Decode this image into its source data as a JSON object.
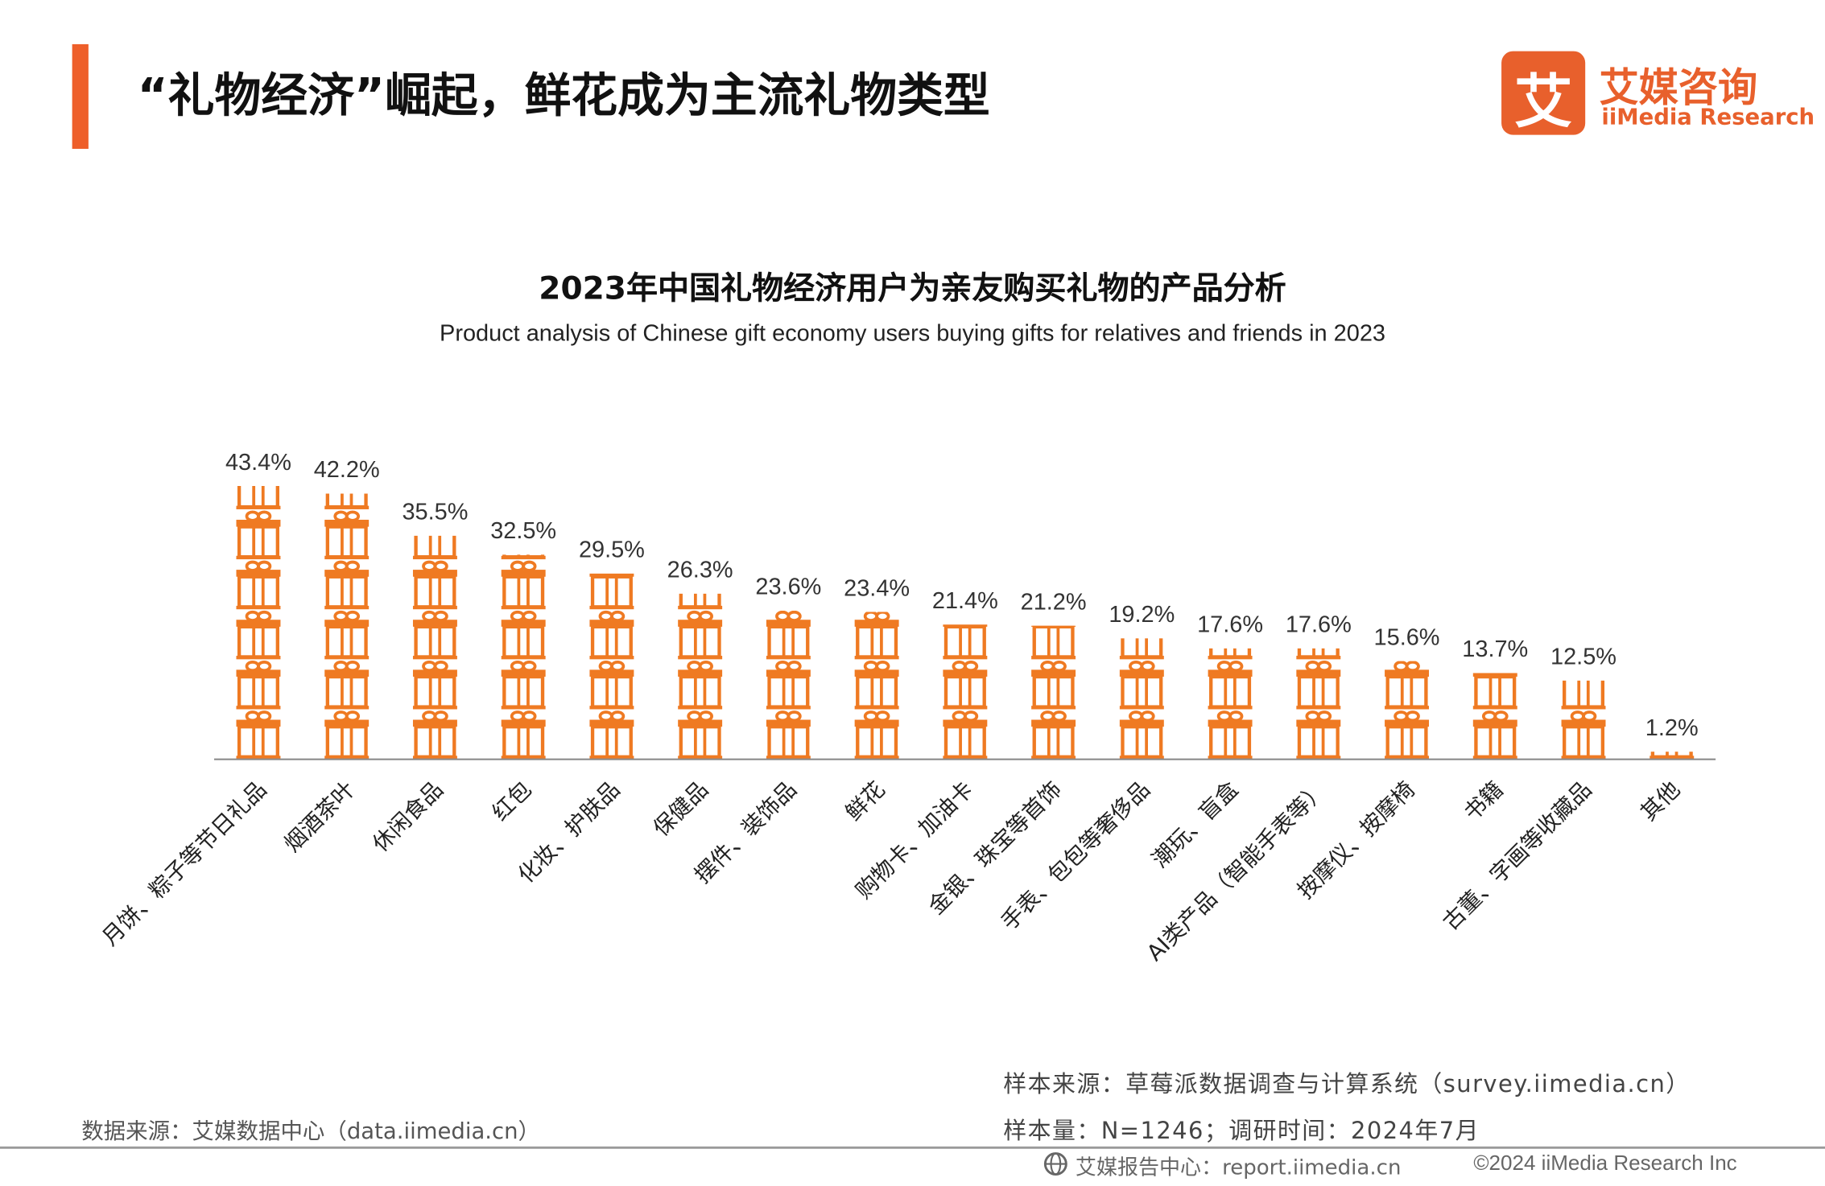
{
  "header": {
    "title": "“礼物经济”崛起，鲜花成为主流礼物类型",
    "accent_color": "#ee5f2a"
  },
  "logo": {
    "glyph": "艾",
    "name_cn": "艾媒咨询",
    "name_en": "iiMedia Research",
    "color": "#e8602c"
  },
  "chart_data": {
    "type": "bar",
    "title": "2023年中国礼物经济用户为亲友购买礼物的产品分析",
    "subtitle": "Product analysis of Chinese gift economy users buying gifts for relatives and friends in 2023",
    "categories": [
      "月饼、粽子等节日礼品",
      "烟酒茶叶",
      "休闲食品",
      "红包",
      "化妆、护肤品",
      "保健品",
      "摆件、装饰品",
      "鲜花",
      "购物卡、加油卡",
      "金银、珠宝等首饰",
      "手表、包包等奢侈品",
      "潮玩、盲盒",
      "AI类产品（智能手表等）",
      "按摩仪、按摩椅",
      "书籍",
      "古董、字画等收藏品",
      "其他"
    ],
    "values": [
      43.4,
      42.2,
      35.5,
      32.5,
      29.5,
      26.3,
      23.6,
      23.4,
      21.4,
      21.2,
      19.2,
      17.6,
      17.6,
      15.6,
      13.7,
      12.5,
      1.2
    ],
    "value_labels": [
      "43.4%",
      "42.2%",
      "35.5%",
      "32.5%",
      "29.5%",
      "26.3%",
      "23.6%",
      "23.4%",
      "21.4%",
      "21.2%",
      "19.2%",
      "17.6%",
      "17.6%",
      "15.6%",
      "13.7%",
      "12.5%",
      "1.2%"
    ],
    "unit": "%",
    "ylim": [
      0,
      45
    ],
    "bar_style": "stacked gift-box pictogram",
    "bar_color": "#ef7a22",
    "grid": false,
    "legend": "none"
  },
  "notes": {
    "sample_source": "样本来源：草莓派数据调查与计算系统（survey.iimedia.cn）",
    "sample_size": "样本量：N=1246；调研时间：2024年7月",
    "data_source": "数据来源：艾媒数据中心（data.iimedia.cn）"
  },
  "footer": {
    "report_center": "艾媒报告中心：report.iimedia.cn",
    "copyright": "©2024  iiMedia Research Inc"
  }
}
